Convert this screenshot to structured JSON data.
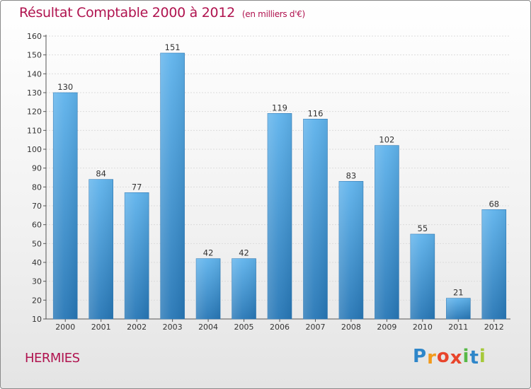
{
  "header": {
    "title": "Résultat Comptable 2000 à 2012",
    "subtitle": "(en milliers d'€)"
  },
  "footer": {
    "place": "HERMIES",
    "brand_letters": [
      "P",
      "r",
      "o",
      "x",
      "i",
      "t",
      "i"
    ],
    "brand_colors": [
      "#2e86c9",
      "#f29a1b",
      "#e8452c",
      "#e8452c",
      "#57b947",
      "#2e86c9",
      "#a6c93a"
    ]
  },
  "colors": {
    "bar_top": "#5fb3ec",
    "bar_bottom": "#2777b6",
    "axis": "#555555",
    "grid": "#dcdcdc",
    "title": "#b0134f"
  },
  "chart_data": {
    "type": "bar",
    "title": "Résultat Comptable 2000 à 2012",
    "subtitle": "(en milliers d'€)",
    "xlabel": "",
    "ylabel": "",
    "categories": [
      "2000",
      "2001",
      "2002",
      "2003",
      "2004",
      "2005",
      "2006",
      "2007",
      "2008",
      "2009",
      "2010",
      "2011",
      "2012"
    ],
    "values": [
      130,
      84,
      77,
      151,
      42,
      42,
      119,
      116,
      83,
      102,
      55,
      21,
      68
    ],
    "ylim": [
      10,
      160
    ],
    "yticks": [
      10,
      20,
      30,
      40,
      50,
      60,
      70,
      80,
      90,
      100,
      110,
      120,
      130,
      140,
      150,
      160
    ],
    "grid": true,
    "legend": "none"
  }
}
